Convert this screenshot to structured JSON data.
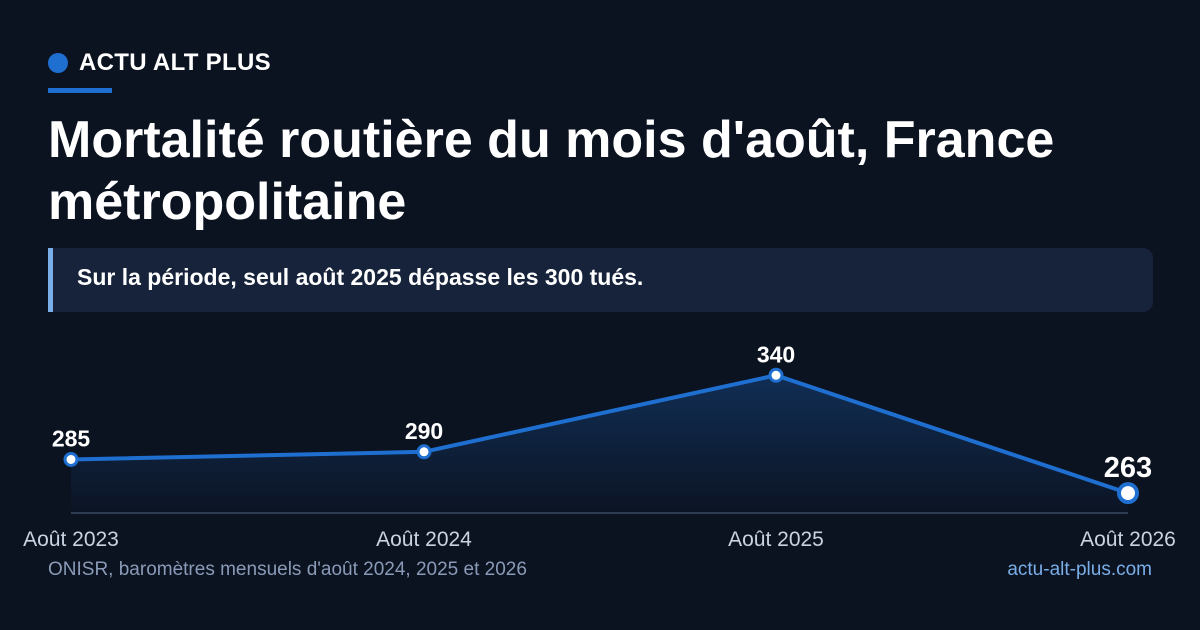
{
  "brand": {
    "name": "ACTU ALT PLUS",
    "accent_color": "#1e6fd0"
  },
  "header": {
    "title": "Mortalité routière du mois d'août, France métropolitaine"
  },
  "callout": {
    "text": "Sur la période, seul août 2025 dépasse les 300 tués."
  },
  "footer": {
    "source": "ONISR, baromètres mensuels d'août 2024, 2025 et 2026",
    "site": "actu-alt-plus.com"
  },
  "chart_data": {
    "type": "area",
    "categories": [
      "Août 2023",
      "Août 2024",
      "Août 2025",
      "Août 2026"
    ],
    "values": [
      285,
      290,
      340,
      263
    ],
    "data_labels": [
      "285",
      "290",
      "340",
      "263"
    ],
    "ylim": [
      250,
      350
    ],
    "grid": false,
    "legend": "none",
    "line_color": "#1e6fd0",
    "highlight_last": true
  }
}
